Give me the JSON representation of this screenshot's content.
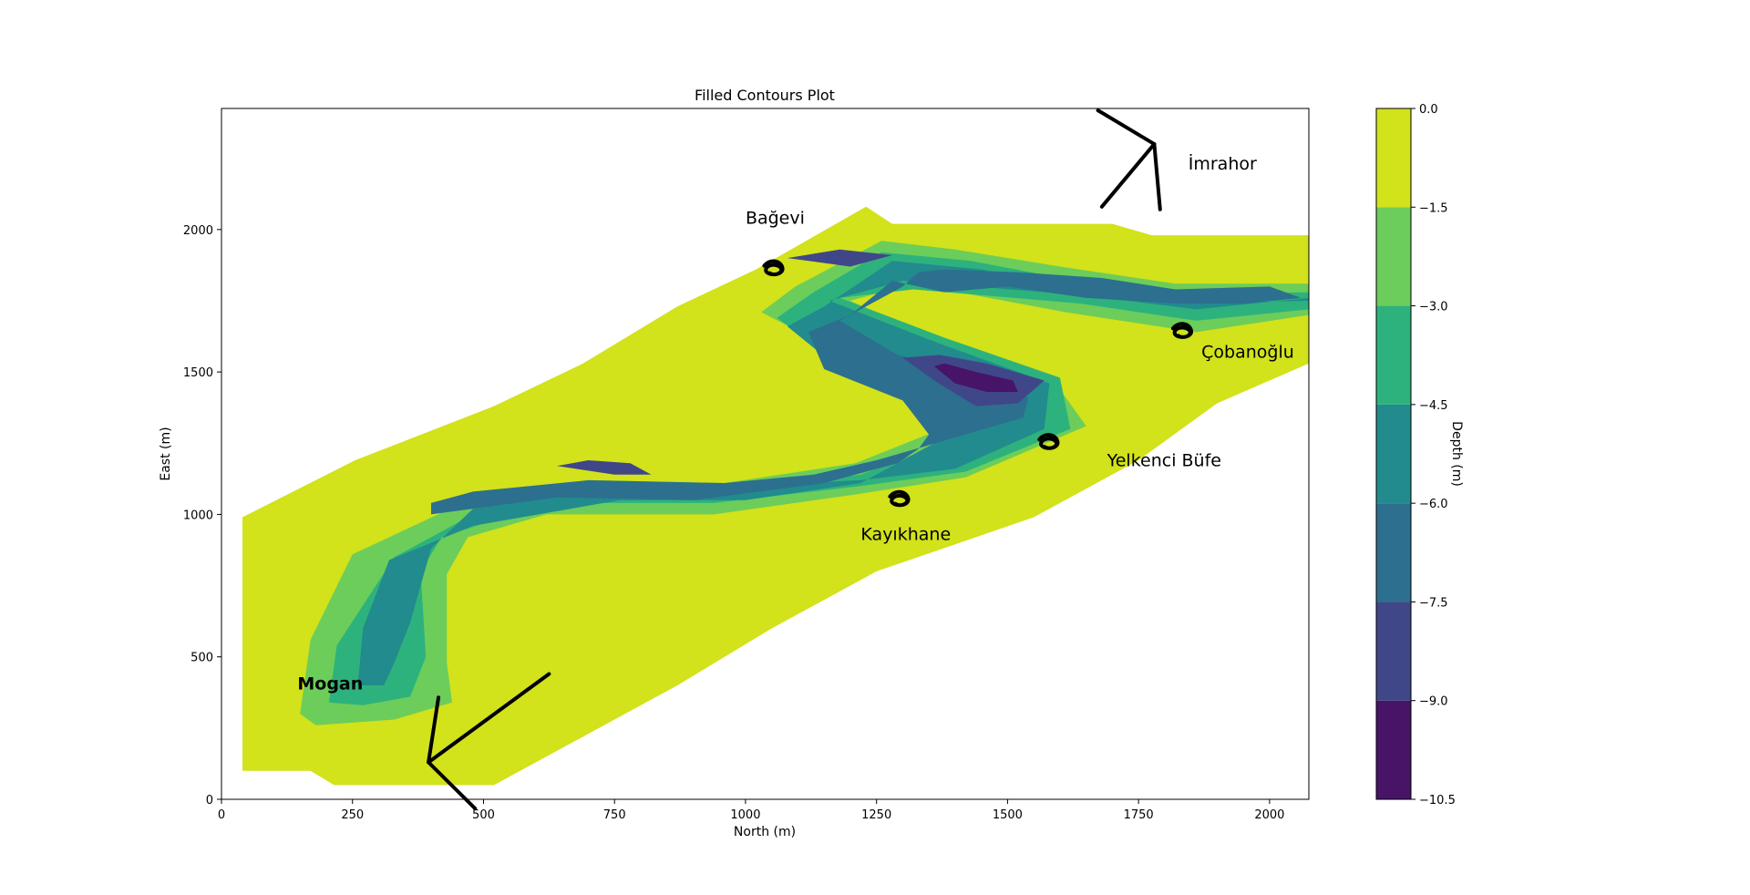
{
  "chart_data": {
    "type": "contourf",
    "title": "Filled Contours Plot",
    "xlabel": "North (m)",
    "ylabel": "East (m)",
    "xlim": [
      0,
      2075
    ],
    "ylim": [
      0,
      2425
    ],
    "xticks": [
      0,
      250,
      500,
      750,
      1000,
      1250,
      1500,
      1750,
      2000
    ],
    "yticks": [
      0,
      500,
      1000,
      1500,
      2000
    ],
    "colorbar": {
      "label": "Depth (m)",
      "levels": [
        -10.5,
        -9.0,
        -7.5,
        -6.0,
        -4.5,
        -3.0,
        -1.5,
        0.0
      ],
      "tick_labels": [
        "−10.5",
        "−9.0",
        "−7.5",
        "−6.0",
        "−4.5",
        "−3.0",
        "−1.5",
        "0.0"
      ],
      "colors": [
        "#481467",
        "#3f4789",
        "#2d6f8e",
        "#228b8d",
        "#2db27d",
        "#6ccd5a",
        "#d2e21b"
      ]
    },
    "grid": false,
    "domain_polygon": [
      [
        40,
        100
      ],
      [
        170,
        100
      ],
      [
        215,
        50
      ],
      [
        520,
        50
      ],
      [
        870,
        400
      ],
      [
        1050,
        600
      ],
      [
        1250,
        800
      ],
      [
        1550,
        990
      ],
      [
        1750,
        1190
      ],
      [
        1900,
        1390
      ],
      [
        2075,
        1530
      ],
      [
        2075,
        1980
      ],
      [
        1775,
        1980
      ],
      [
        1700,
        2020
      ],
      [
        1280,
        2020
      ],
      [
        1230,
        2080
      ],
      [
        1020,
        1860
      ],
      [
        870,
        1730
      ],
      [
        690,
        1530
      ],
      [
        520,
        1380
      ],
      [
        255,
        1190
      ],
      [
        40,
        990
      ]
    ],
    "bands": [
      {
        "level_max": -1.5,
        "poly": [
          [
            150,
            300
          ],
          [
            170,
            560
          ],
          [
            250,
            860
          ],
          [
            460,
            1040
          ],
          [
            700,
            1120
          ],
          [
            960,
            1110
          ],
          [
            1210,
            1180
          ],
          [
            1360,
            1290
          ],
          [
            1390,
            1380
          ],
          [
            1230,
            1520
          ],
          [
            1030,
            1710
          ],
          [
            1095,
            1800
          ],
          [
            1260,
            1960
          ],
          [
            1400,
            1930
          ],
          [
            1600,
            1870
          ],
          [
            1820,
            1810
          ],
          [
            2075,
            1810
          ],
          [
            2075,
            1700
          ],
          [
            1860,
            1640
          ],
          [
            1610,
            1710
          ],
          [
            1320,
            1810
          ],
          [
            1200,
            1750
          ],
          [
            1380,
            1600
          ],
          [
            1580,
            1490
          ],
          [
            1650,
            1310
          ],
          [
            1420,
            1130
          ],
          [
            1210,
            1070
          ],
          [
            940,
            1000
          ],
          [
            620,
            1000
          ],
          [
            470,
            920
          ],
          [
            430,
            790
          ],
          [
            430,
            480
          ],
          [
            440,
            340
          ],
          [
            330,
            280
          ],
          [
            180,
            260
          ]
        ]
      },
      {
        "level_max": -3.0,
        "poly": [
          [
            205,
            340
          ],
          [
            220,
            540
          ],
          [
            330,
            850
          ],
          [
            480,
            1000
          ],
          [
            700,
            1080
          ],
          [
            970,
            1080
          ],
          [
            1220,
            1140
          ],
          [
            1380,
            1250
          ],
          [
            1390,
            1360
          ],
          [
            1200,
            1500
          ],
          [
            1060,
            1690
          ],
          [
            1130,
            1780
          ],
          [
            1260,
            1920
          ],
          [
            1430,
            1890
          ],
          [
            1630,
            1820
          ],
          [
            1800,
            1770
          ],
          [
            2075,
            1780
          ],
          [
            2075,
            1720
          ],
          [
            1860,
            1680
          ],
          [
            1640,
            1740
          ],
          [
            1320,
            1790
          ],
          [
            1180,
            1760
          ],
          [
            1380,
            1620
          ],
          [
            1600,
            1480
          ],
          [
            1620,
            1300
          ],
          [
            1420,
            1150
          ],
          [
            1220,
            1100
          ],
          [
            940,
            1040
          ],
          [
            620,
            1040
          ],
          [
            420,
            920
          ],
          [
            380,
            800
          ],
          [
            390,
            500
          ],
          [
            360,
            360
          ],
          [
            270,
            330
          ]
        ]
      },
      {
        "level_max": -4.5,
        "poly": [
          [
            260,
            400
          ],
          [
            270,
            600
          ],
          [
            320,
            840
          ],
          [
            480,
            960
          ],
          [
            760,
            1050
          ],
          [
            1000,
            1050
          ],
          [
            1220,
            1110
          ],
          [
            1370,
            1260
          ],
          [
            1360,
            1360
          ],
          [
            1200,
            1480
          ],
          [
            1080,
            1660
          ],
          [
            1150,
            1730
          ],
          [
            1280,
            1890
          ],
          [
            1450,
            1860
          ],
          [
            1640,
            1790
          ],
          [
            1820,
            1740
          ],
          [
            2075,
            1750
          ],
          [
            2075,
            1760
          ],
          [
            1860,
            1720
          ],
          [
            1640,
            1770
          ],
          [
            1300,
            1820
          ],
          [
            1160,
            1750
          ],
          [
            1370,
            1600
          ],
          [
            1580,
            1460
          ],
          [
            1570,
            1300
          ],
          [
            1400,
            1160
          ],
          [
            1220,
            1120
          ],
          [
            1000,
            1100
          ],
          [
            700,
            1090
          ],
          [
            480,
            1020
          ],
          [
            400,
            880
          ],
          [
            360,
            620
          ],
          [
            330,
            480
          ],
          [
            310,
            400
          ]
        ]
      },
      {
        "level_max": -6.0,
        "poly": [
          [
            400,
            1000
          ],
          [
            640,
            1060
          ],
          [
            900,
            1050
          ],
          [
            1150,
            1110
          ],
          [
            1290,
            1180
          ],
          [
            1330,
            1230
          ],
          [
            1350,
            1280
          ],
          [
            1300,
            1400
          ],
          [
            1150,
            1510
          ],
          [
            1120,
            1640
          ],
          [
            1200,
            1700
          ],
          [
            1280,
            1820
          ],
          [
            1380,
            1780
          ],
          [
            1500,
            1800
          ],
          [
            1650,
            1760
          ],
          [
            1820,
            1740
          ],
          [
            1950,
            1740
          ],
          [
            2060,
            1760
          ],
          [
            2000,
            1800
          ],
          [
            1820,
            1790
          ],
          [
            1680,
            1830
          ],
          [
            1520,
            1850
          ],
          [
            1380,
            1860
          ],
          [
            1330,
            1850
          ],
          [
            1300,
            1800
          ],
          [
            1240,
            1740
          ],
          [
            1180,
            1680
          ],
          [
            1290,
            1560
          ],
          [
            1430,
            1490
          ],
          [
            1540,
            1410
          ],
          [
            1530,
            1340
          ],
          [
            1400,
            1270
          ],
          [
            1250,
            1190
          ],
          [
            1130,
            1140
          ],
          [
            960,
            1110
          ],
          [
            700,
            1120
          ],
          [
            480,
            1080
          ],
          [
            400,
            1040
          ]
        ]
      },
      {
        "level_max": -7.5,
        "poly": [
          [
            1300,
            1550
          ],
          [
            1360,
            1470
          ],
          [
            1440,
            1380
          ],
          [
            1520,
            1390
          ],
          [
            1570,
            1470
          ],
          [
            1460,
            1530
          ],
          [
            1370,
            1560
          ]
        ]
      },
      {
        "level_max": -7.5,
        "poly": [
          [
            640,
            1170
          ],
          [
            750,
            1140
          ],
          [
            820,
            1140
          ],
          [
            780,
            1180
          ],
          [
            700,
            1190
          ]
        ]
      },
      {
        "level_max": -7.5,
        "poly": [
          [
            1080,
            1900
          ],
          [
            1200,
            1870
          ],
          [
            1280,
            1910
          ],
          [
            1180,
            1930
          ]
        ]
      },
      {
        "level_max": -9.0,
        "poly": [
          [
            1360,
            1520
          ],
          [
            1400,
            1460
          ],
          [
            1460,
            1430
          ],
          [
            1520,
            1430
          ],
          [
            1510,
            1470
          ],
          [
            1440,
            1500
          ],
          [
            1380,
            1530
          ]
        ]
      }
    ],
    "annotations": [
      {
        "text": "Bağevi",
        "x": 1000,
        "y": 2020,
        "bold": false
      },
      {
        "text": "İmrahor",
        "x": 1845,
        "y": 2210,
        "bold": false
      },
      {
        "text": "Çobanoğlu",
        "x": 1870,
        "y": 1550,
        "bold": false
      },
      {
        "text": "Yelkenci Büfe",
        "x": 1690,
        "y": 1170,
        "bold": false
      },
      {
        "text": "Kayıkhane",
        "x": 1220,
        "y": 910,
        "bold": false
      },
      {
        "text": "Mogan",
        "x": 145,
        "y": 385,
        "bold": true
      }
    ],
    "arrows": [
      {
        "from": [
          625,
          440
        ],
        "to": [
          395,
          130
        ]
      },
      {
        "from": [
          1680,
          2080
        ],
        "to": [
          1780,
          2300
        ]
      }
    ],
    "scribbles": [
      {
        "near": "Bağevi",
        "x": 1060,
        "y": 1860
      },
      {
        "near": "Çobanoğlu",
        "x": 1840,
        "y": 1640
      },
      {
        "near": "Yelkenci Büfe",
        "x": 1585,
        "y": 1250
      },
      {
        "near": "Kayıkhane",
        "x": 1300,
        "y": 1050
      }
    ]
  }
}
